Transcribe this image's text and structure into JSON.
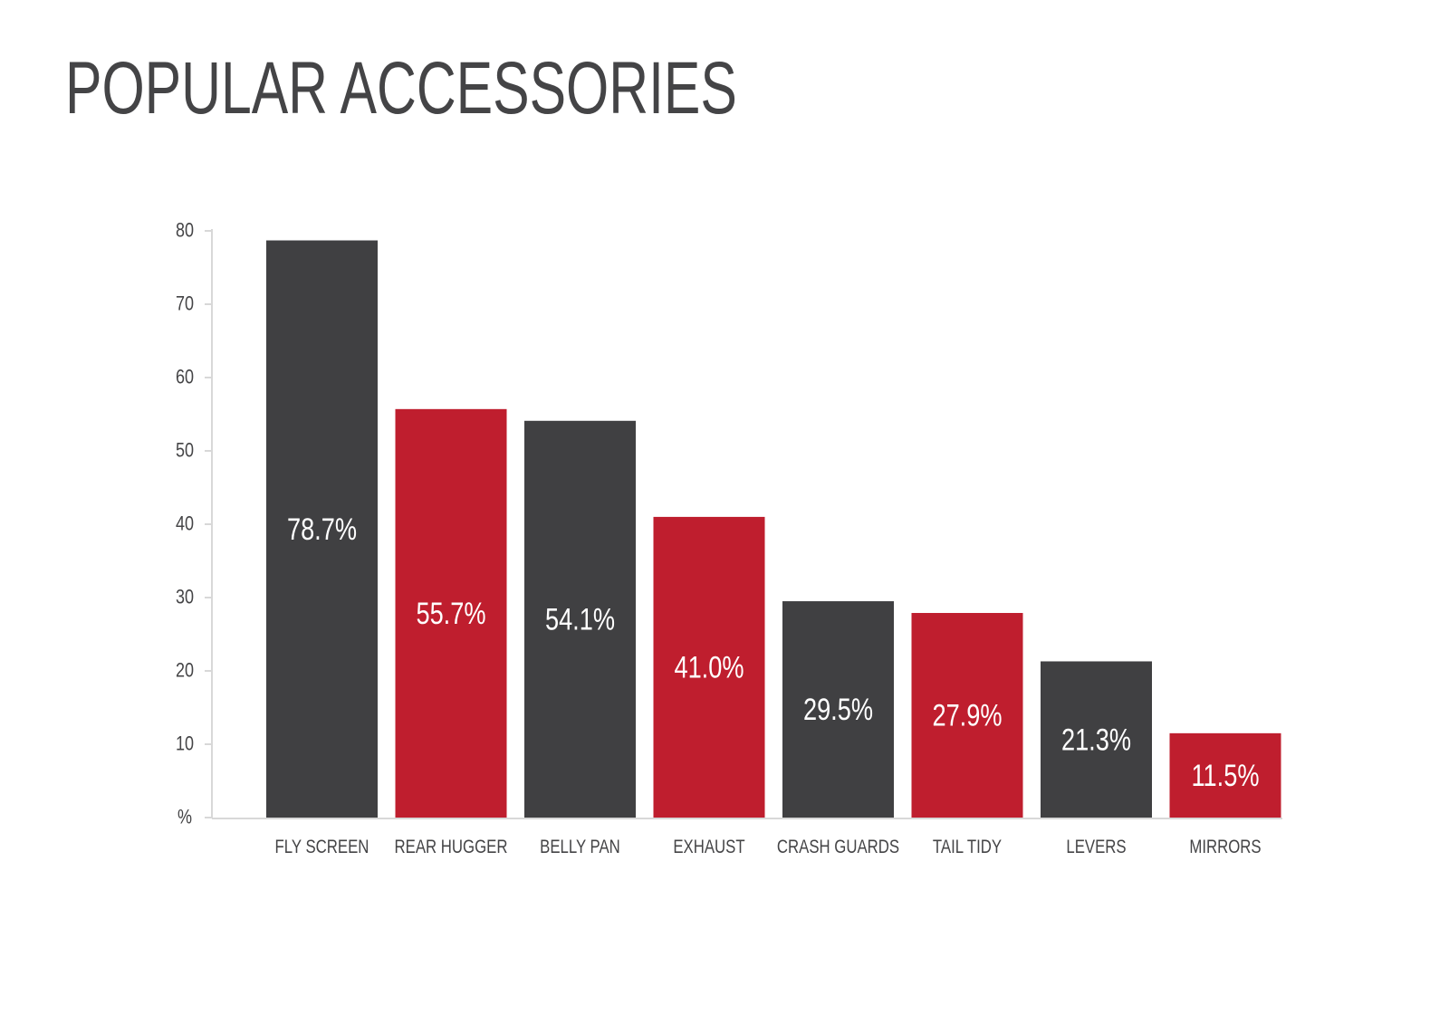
{
  "chart_data": {
    "type": "bar",
    "title": "POPULAR ACCESSORIES",
    "xlabel": "",
    "ylabel": "%",
    "ylim": [
      0,
      80
    ],
    "y_ticks": [
      "%",
      "10",
      "20",
      "30",
      "40",
      "50",
      "60",
      "70",
      "80"
    ],
    "grid": false,
    "categories": [
      "FLY SCREEN",
      "REAR HUGGER",
      "BELLY PAN",
      "EXHAUST",
      "CRASH GUARDS",
      "TAIL TIDY",
      "LEVERS",
      "MIRRORS"
    ],
    "values": [
      78.7,
      55.7,
      54.1,
      41.0,
      29.5,
      27.9,
      21.3,
      11.5
    ],
    "data_labels": [
      "78.7%",
      "55.7%",
      "54.1%",
      "41.0%",
      "29.5%",
      "27.9%",
      "21.3%",
      "11.5%"
    ],
    "bar_colors": [
      "#404042",
      "#bf1e2e",
      "#404042",
      "#bf1e2e",
      "#404042",
      "#bf1e2e",
      "#404042",
      "#bf1e2e"
    ]
  },
  "colors": {
    "text": "#444446",
    "axis": "#d8d8d8",
    "dark_bar": "#404042",
    "red_bar": "#bf1e2e",
    "label_on_bar": "#ffffff"
  }
}
